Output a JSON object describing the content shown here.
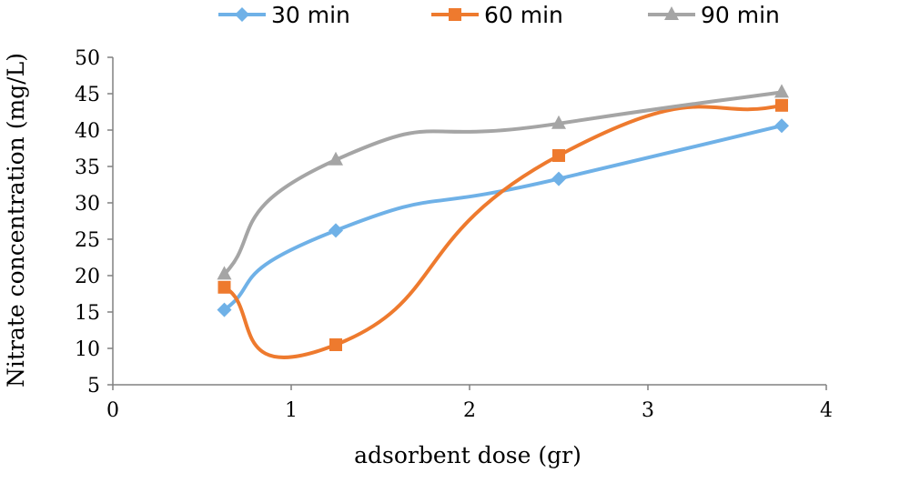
{
  "chart_data": {
    "type": "line",
    "smooth": true,
    "xlabel": "adsorbent dose (gr)",
    "ylabel": "Nitrate concentration (mg/L)",
    "xlim": [
      0,
      4
    ],
    "ylim": [
      5,
      50
    ],
    "x_ticks": [
      0,
      1,
      2,
      3,
      4
    ],
    "y_ticks": [
      5,
      10,
      15,
      20,
      25,
      30,
      35,
      40,
      45,
      50
    ],
    "grid": false,
    "legend_position": "top",
    "series": [
      {
        "name": "30 min",
        "color": "#6fb1e7",
        "marker": "diamond",
        "points": [
          [
            0.625,
            15.3
          ],
          [
            1.25,
            26.2
          ],
          [
            2.5,
            33.3
          ],
          [
            3.75,
            40.6
          ]
        ]
      },
      {
        "name": "60 min",
        "color": "#ee7a2e",
        "marker": "square",
        "points": [
          [
            0.625,
            18.4
          ],
          [
            1.25,
            10.5
          ],
          [
            2.5,
            36.5
          ],
          [
            3.75,
            43.4
          ]
        ]
      },
      {
        "name": "90 min",
        "color": "#a5a5a5",
        "marker": "triangle",
        "points": [
          [
            0.625,
            20.2
          ],
          [
            1.25,
            35.9
          ],
          [
            2.5,
            40.9
          ],
          [
            3.75,
            45.2
          ]
        ]
      }
    ]
  }
}
